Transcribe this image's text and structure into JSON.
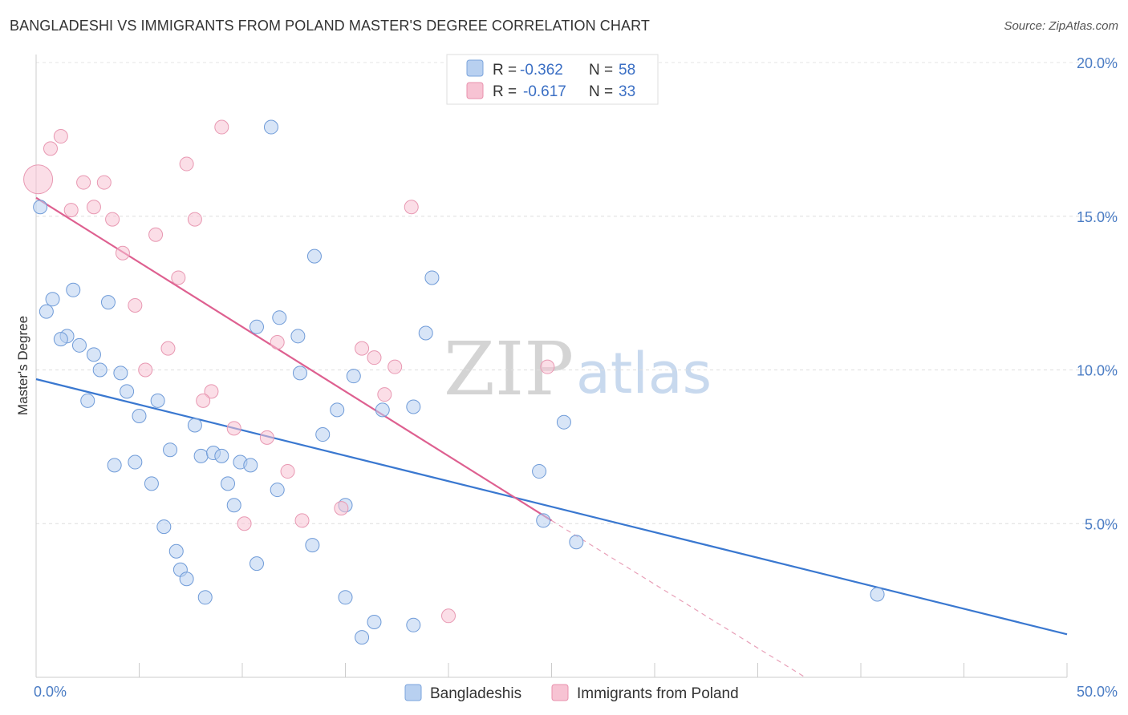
{
  "title": "BANGLADESHI VS IMMIGRANTS FROM POLAND MASTER'S DEGREE CORRELATION CHART",
  "source": "Source: ZipAtlas.com",
  "watermark": {
    "zip": "ZIP",
    "atlas": "atlas"
  },
  "colors": {
    "blue": "#4a86d8",
    "blue_fill": "#b8d0f0",
    "pink": "#e0608a",
    "pink_fill": "#f7c3d3",
    "tick_label": "#4a7cc4"
  },
  "chart_data": {
    "type": "scatter",
    "title": "BANGLADESHI VS IMMIGRANTS FROM POLAND MASTER'S DEGREE CORRELATION CHART",
    "xlabel": "",
    "ylabel": "Master's Degree",
    "xlim": [
      0,
      50
    ],
    "ylim": [
      0,
      20
    ],
    "x_ticks": [
      0,
      5,
      10,
      15,
      20,
      25,
      30,
      35,
      40,
      45,
      50
    ],
    "x_tick_labels": {
      "0": "0.0%",
      "50": "50.0%"
    },
    "y_ticks": [
      5,
      10,
      15,
      20
    ],
    "y_tick_labels": [
      "5.0%",
      "10.0%",
      "15.0%",
      "20.0%"
    ],
    "grid": true,
    "legend": {
      "placement": "top-center",
      "entries": [
        {
          "r_label": "R =",
          "r": "-0.362",
          "n_label": "N =",
          "n": "58"
        },
        {
          "r_label": "R =",
          "r": "-0.617",
          "n_label": "N =",
          "n": "33"
        }
      ]
    },
    "series": [
      {
        "name": "Bangladeshis",
        "color": "#4a86d8",
        "trend": {
          "x": [
            0,
            50
          ],
          "y": [
            9.7,
            1.4
          ]
        },
        "points": [
          [
            0.2,
            15.3
          ],
          [
            11.4,
            17.9
          ],
          [
            13.5,
            13.7
          ],
          [
            19.2,
            13.0
          ],
          [
            1.8,
            12.6
          ],
          [
            0.8,
            12.3
          ],
          [
            3.5,
            12.2
          ],
          [
            0.5,
            11.9
          ],
          [
            11.8,
            11.7
          ],
          [
            10.7,
            11.4
          ],
          [
            1.5,
            11.1
          ],
          [
            1.2,
            11.0
          ],
          [
            12.7,
            11.1
          ],
          [
            18.9,
            11.2
          ],
          [
            2.1,
            10.8
          ],
          [
            2.8,
            10.5
          ],
          [
            3.1,
            10.0
          ],
          [
            4.1,
            9.9
          ],
          [
            12.8,
            9.9
          ],
          [
            15.4,
            9.8
          ],
          [
            4.4,
            9.3
          ],
          [
            2.5,
            9.0
          ],
          [
            5.9,
            9.0
          ],
          [
            5.0,
            8.5
          ],
          [
            14.6,
            8.7
          ],
          [
            16.8,
            8.7
          ],
          [
            18.3,
            8.8
          ],
          [
            25.6,
            8.3
          ],
          [
            7.7,
            8.2
          ],
          [
            13.9,
            7.9
          ],
          [
            6.5,
            7.4
          ],
          [
            8.0,
            7.2
          ],
          [
            8.6,
            7.3
          ],
          [
            9.0,
            7.2
          ],
          [
            9.9,
            7.0
          ],
          [
            10.4,
            6.9
          ],
          [
            3.8,
            6.9
          ],
          [
            4.8,
            7.0
          ],
          [
            24.4,
            6.7
          ],
          [
            5.6,
            6.3
          ],
          [
            9.3,
            6.3
          ],
          [
            11.7,
            6.1
          ],
          [
            9.6,
            5.6
          ],
          [
            15.0,
            5.6
          ],
          [
            24.6,
            5.1
          ],
          [
            6.2,
            4.9
          ],
          [
            26.2,
            4.4
          ],
          [
            13.4,
            4.3
          ],
          [
            6.8,
            4.1
          ],
          [
            7.0,
            3.5
          ],
          [
            10.7,
            3.7
          ],
          [
            7.3,
            3.2
          ],
          [
            8.2,
            2.6
          ],
          [
            15.0,
            2.6
          ],
          [
            40.8,
            2.7
          ],
          [
            16.4,
            1.8
          ],
          [
            18.3,
            1.7
          ],
          [
            15.8,
            1.3
          ]
        ]
      },
      {
        "name": "Immigrants from Poland",
        "color": "#e0608a",
        "trend": {
          "x": [
            0,
            25
          ],
          "y": [
            15.6,
            5.1
          ],
          "dashed_x": [
            25,
            37.3
          ],
          "dashed_y": [
            5.1,
            0
          ]
        },
        "points": [
          [
            0.1,
            16.2
          ],
          [
            1.2,
            17.6
          ],
          [
            0.7,
            17.2
          ],
          [
            9.0,
            17.9
          ],
          [
            7.3,
            16.7
          ],
          [
            2.3,
            16.1
          ],
          [
            3.3,
            16.1
          ],
          [
            2.8,
            15.3
          ],
          [
            1.7,
            15.2
          ],
          [
            18.2,
            15.3
          ],
          [
            3.7,
            14.9
          ],
          [
            7.7,
            14.9
          ],
          [
            5.8,
            14.4
          ],
          [
            4.2,
            13.8
          ],
          [
            6.9,
            13.0
          ],
          [
            4.8,
            12.1
          ],
          [
            11.7,
            10.9
          ],
          [
            6.4,
            10.7
          ],
          [
            15.8,
            10.7
          ],
          [
            16.4,
            10.4
          ],
          [
            17.4,
            10.1
          ],
          [
            24.8,
            10.1
          ],
          [
            5.3,
            10.0
          ],
          [
            8.5,
            9.3
          ],
          [
            16.9,
            9.2
          ],
          [
            8.1,
            9.0
          ],
          [
            9.6,
            8.1
          ],
          [
            11.2,
            7.8
          ],
          [
            12.2,
            6.7
          ],
          [
            10.1,
            5.0
          ],
          [
            12.9,
            5.1
          ],
          [
            14.8,
            5.5
          ],
          [
            20.0,
            2.0
          ]
        ],
        "large_point": [
          0.1,
          16.2
        ]
      }
    ]
  }
}
